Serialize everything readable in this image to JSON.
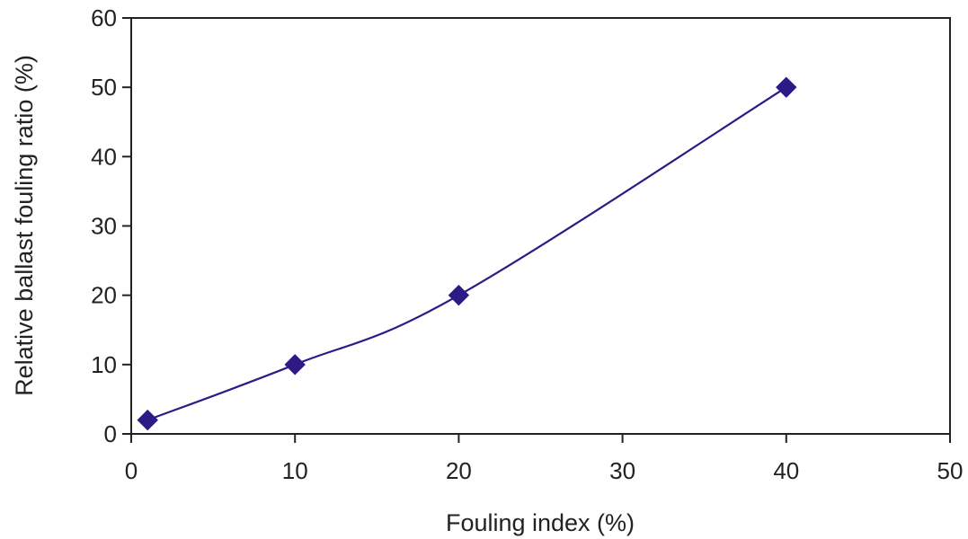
{
  "chart_data": {
    "type": "line",
    "title": "",
    "xlabel": "Fouling index (%)",
    "ylabel": "Relative ballast fouling ratio (%)",
    "xlim": [
      0,
      50
    ],
    "ylim": [
      0,
      60
    ],
    "xticks": [
      0,
      10,
      20,
      30,
      40,
      50
    ],
    "yticks": [
      0,
      10,
      20,
      30,
      40,
      50,
      60
    ],
    "grid": false,
    "legend": "none",
    "series": [
      {
        "x": [
          1,
          10,
          20,
          40
        ],
        "y": [
          2,
          10,
          20,
          50
        ],
        "color": "#2e1a87",
        "marker": "diamond",
        "smooth": true
      }
    ]
  }
}
